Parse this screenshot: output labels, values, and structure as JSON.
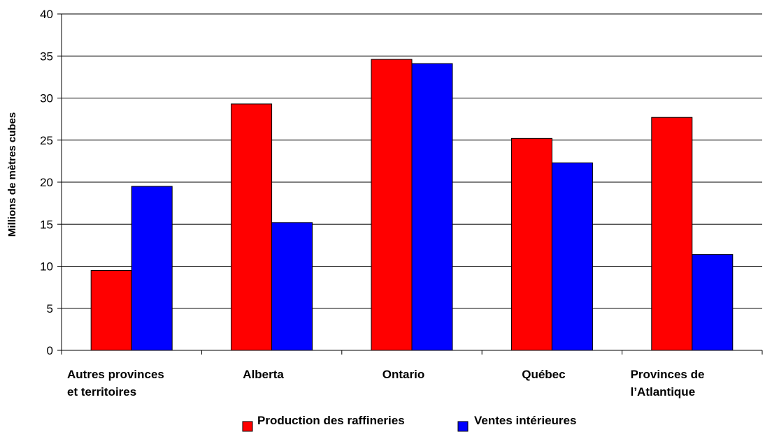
{
  "chart_data": {
    "type": "bar",
    "categories": [
      [
        "Autres provinces",
        "et territoires"
      ],
      [
        "Alberta"
      ],
      [
        "Ontario"
      ],
      [
        "Québec"
      ],
      [
        "Provinces de",
        "l’Atlantique"
      ]
    ],
    "series": [
      {
        "name": "Production des raffineries",
        "color": "#ff0000",
        "values": [
          9.5,
          29.3,
          34.6,
          25.2,
          27.7
        ]
      },
      {
        "name": "Ventes intérieures",
        "color": "#0000ff",
        "values": [
          19.5,
          15.2,
          34.1,
          22.3,
          11.4
        ]
      }
    ],
    "ylabel": "Millions  de mètres cubes",
    "xlabel": "",
    "ylim": [
      0,
      40
    ],
    "yticks": [
      0,
      5,
      10,
      15,
      20,
      25,
      30,
      35,
      40
    ],
    "grid": true,
    "legend": "bottom"
  }
}
